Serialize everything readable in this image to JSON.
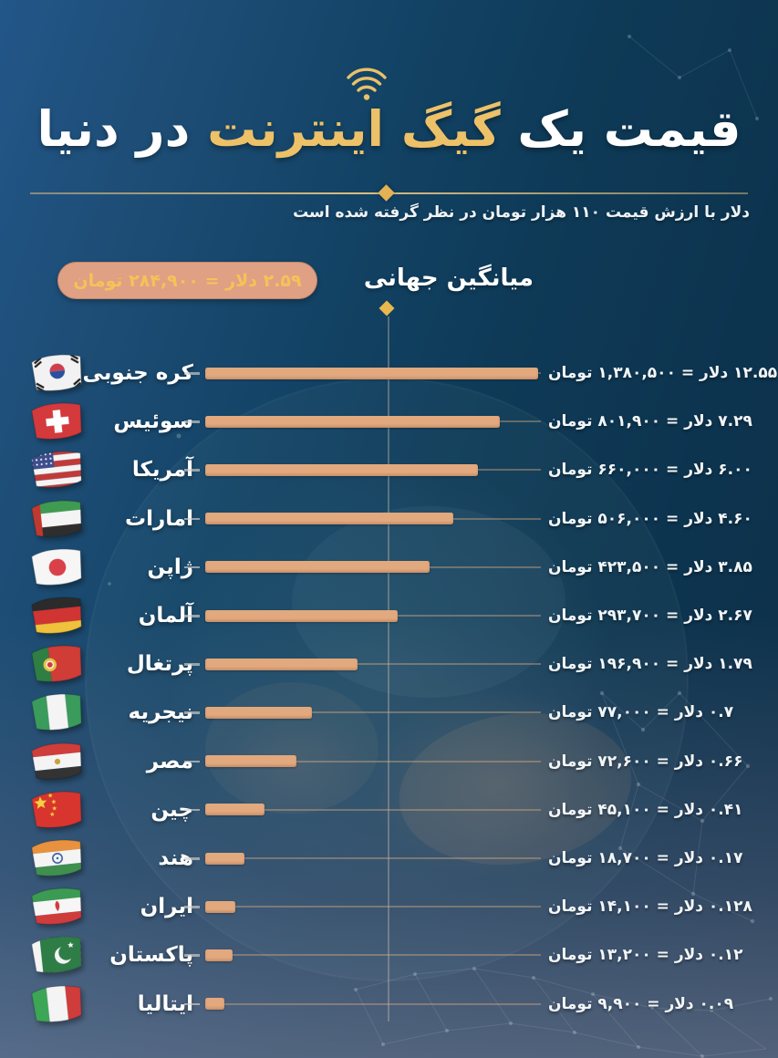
{
  "header": {
    "title_part1": "قیمت یک ",
    "title_highlight": "گیگ اینترنت",
    "title_part2": " در دنیا",
    "subtitle": "دلار با ارزش قیمت ۱۱۰ هزار تومان در نظر گرفته شده است"
  },
  "average": {
    "label": "میانگین جهانی",
    "badge": "۲.۵۹ دلار = ۲۸۴,۹۰۰ تومان"
  },
  "colors": {
    "title_gold": "#ecc168",
    "bar": "#e2a87e",
    "badge_bg": "#dfa084",
    "badge_text": "#f3c358",
    "diamond_gold": "#e8b84e",
    "background_top_left": "#235689",
    "background_deep": "#0d3550",
    "background_bottom": "#5a6080"
  },
  "chart_data": {
    "type": "bar",
    "orientation": "horizontal-rtl",
    "title": "قیمت یک گیگ اینترنت در دنیا",
    "note": "دلار با ارزش قیمت ۱۱۰ هزار تومان در نظر گرفته شده است",
    "unit_dollar_word": "دلار",
    "unit_toman_word": "تومان",
    "scale_note": "bar lengths are non-linear (approx. logarithmic); average marker line drawn at ~2.59$",
    "average": {
      "dollars": 2.59,
      "toman": 284900,
      "label": "۲.۵۹ دلار = ۲۸۴,۹۰۰ تومان"
    },
    "countries": [
      {
        "name_fa": "کره جنوبی",
        "name_en": "South Korea",
        "flag": "south-korea",
        "dollars": 12.55,
        "toman": 1380500,
        "label": "۱۲.۵۵ دلار = ۱,۳۸۰,۵۰۰ تومان",
        "bar_frac": 1.0
      },
      {
        "name_fa": "سوئیس",
        "name_en": "Switzerland",
        "flag": "switzerland",
        "dollars": 7.29,
        "toman": 801900,
        "label": "۷.۲۹ دلار = ۸۰۱,۹۰۰ تومان",
        "bar_frac": 0.885
      },
      {
        "name_fa": "آمریکا",
        "name_en": "USA",
        "flag": "usa",
        "dollars": 6.0,
        "toman": 660000,
        "label": "۶.۰۰ دلار = ۶۶۰,۰۰۰ تومان",
        "bar_frac": 0.818
      },
      {
        "name_fa": "امارات",
        "name_en": "UAE",
        "flag": "uae",
        "dollars": 4.6,
        "toman": 506000,
        "label": "۴.۶۰ دلار = ۵۰۶,۰۰۰ تومان",
        "bar_frac": 0.745
      },
      {
        "name_fa": "ژاپن",
        "name_en": "Japan",
        "flag": "japan",
        "dollars": 3.85,
        "toman": 423500,
        "label": "۳.۸۵ دلار = ۴۲۳,۵۰۰ تومان",
        "bar_frac": 0.674
      },
      {
        "name_fa": "آلمان",
        "name_en": "Germany",
        "flag": "germany",
        "dollars": 2.67,
        "toman": 293700,
        "label": "۲.۶۷ دلار = ۲۹۳,۷۰۰ تومان",
        "bar_frac": 0.578
      },
      {
        "name_fa": "پرتغال",
        "name_en": "Portugal",
        "flag": "portugal",
        "dollars": 1.79,
        "toman": 196900,
        "label": "۱.۷۹ دلار = ۱۹۶,۹۰۰ تومان",
        "bar_frac": 0.457
      },
      {
        "name_fa": "نیجریه",
        "name_en": "Nigeria",
        "flag": "nigeria",
        "dollars": 0.7,
        "toman": 77000,
        "label": "۰.۷ دلار = ۷۷,۰۰۰ تومان",
        "bar_frac": 0.32
      },
      {
        "name_fa": "مصر",
        "name_en": "Egypt",
        "flag": "egypt",
        "dollars": 0.66,
        "toman": 72600,
        "label": "۰.۶۶ دلار = ۷۲,۶۰۰ تومان",
        "bar_frac": 0.274
      },
      {
        "name_fa": "چین",
        "name_en": "China",
        "flag": "china",
        "dollars": 0.41,
        "toman": 45100,
        "label": "۰.۴۱ دلار = ۴۵,۱۰۰ تومان",
        "bar_frac": 0.178
      },
      {
        "name_fa": "هند",
        "name_en": "India",
        "flag": "india",
        "dollars": 0.17,
        "toman": 18700,
        "label": "۰.۱۷ دلار = ۱۸,۷۰۰ تومان",
        "bar_frac": 0.118
      },
      {
        "name_fa": "ایران",
        "name_en": "Iran",
        "flag": "iran",
        "dollars": 0.128,
        "toman": 14100,
        "label": "۰.۱۲۸ دلار = ۱۴,۱۰۰ تومان",
        "bar_frac": 0.09
      },
      {
        "name_fa": "پاکستان",
        "name_en": "Pakistan",
        "flag": "pakistan",
        "dollars": 0.12,
        "toman": 13200,
        "label": "۰.۱۲ دلار = ۱۳,۲۰۰ تومان",
        "bar_frac": 0.082
      },
      {
        "name_fa": "ایتالیا",
        "name_en": "Italy",
        "flag": "italy",
        "dollars": 0.09,
        "toman": 9900,
        "label": "۰.۰۹ دلار = ۹,۹۰۰ تومان",
        "bar_frac": 0.058
      }
    ]
  }
}
